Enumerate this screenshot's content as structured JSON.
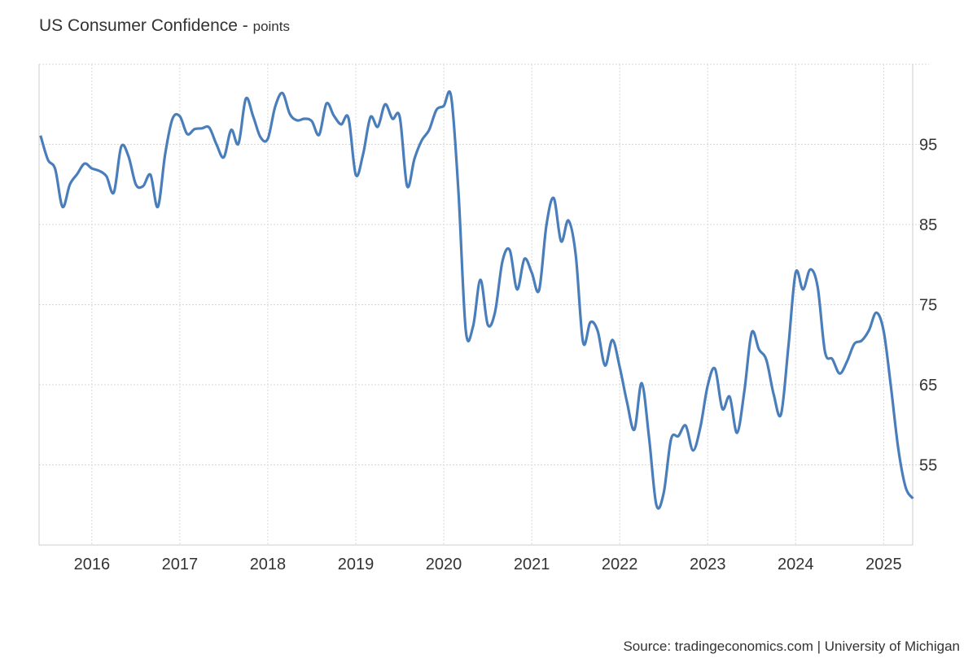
{
  "chart_data": {
    "type": "line",
    "title": "US Consumer Confidence",
    "unit": "points",
    "source": "Source: tradingeconomics.com | University of Michigan",
    "line_color": "#4a7ebb",
    "grid": true,
    "y_axis_side": "right",
    "ylim": [
      45,
      105
    ],
    "xlim": [
      2015.4,
      2025.33
    ],
    "yticks": [
      55,
      65,
      75,
      85,
      95
    ],
    "xticks": [
      "2016",
      "2017",
      "2018",
      "2019",
      "2020",
      "2021",
      "2022",
      "2023",
      "2024",
      "2025"
    ],
    "start": "2015-06",
    "frequency": "monthly",
    "values": [
      96.1,
      93.1,
      91.9,
      87.2,
      90.0,
      91.3,
      92.6,
      92.0,
      91.7,
      91.0,
      89.0,
      94.7,
      93.5,
      90.0,
      89.8,
      91.2,
      87.2,
      93.8,
      98.2,
      98.5,
      96.3,
      96.9,
      97.0,
      97.1,
      95.0,
      93.4,
      96.8,
      95.1,
      100.7,
      98.5,
      95.9,
      95.7,
      99.7,
      101.4,
      98.8,
      98.0,
      98.2,
      97.9,
      96.2,
      100.1,
      98.6,
      97.5,
      98.3,
      91.2,
      93.8,
      98.4,
      97.2,
      100.0,
      98.2,
      98.4,
      89.8,
      93.2,
      95.5,
      96.8,
      99.3,
      99.8,
      101.0,
      89.1,
      71.8,
      72.3,
      78.1,
      72.5,
      74.1,
      80.4,
      81.8,
      76.9,
      80.7,
      79.0,
      76.8,
      84.9,
      88.3,
      82.9,
      85.5,
      81.2,
      70.3,
      72.8,
      71.7,
      67.4,
      70.6,
      67.2,
      62.8,
      59.4,
      65.2,
      58.4,
      50.0,
      51.5,
      58.2,
      58.6,
      59.9,
      56.8,
      59.7,
      64.9,
      67.0,
      62.0,
      63.5,
      59.0,
      64.2,
      71.5,
      69.4,
      68.1,
      63.8,
      61.3,
      69.7,
      79.0,
      76.9,
      79.4,
      77.2,
      69.1,
      68.2,
      66.4,
      67.9,
      70.1,
      70.5,
      71.8,
      74.0,
      71.7,
      64.7,
      57.0,
      52.2,
      50.8
    ]
  }
}
